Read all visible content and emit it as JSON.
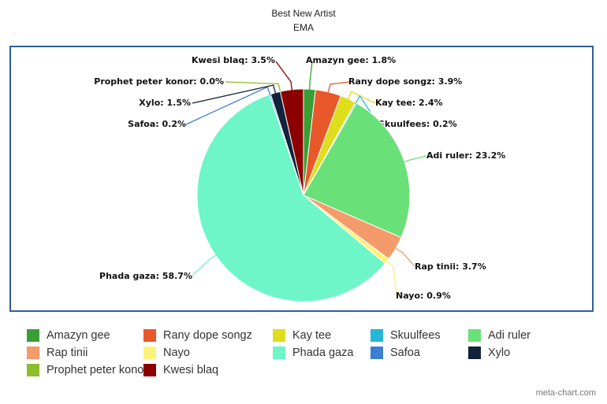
{
  "chart_data": {
    "type": "pie",
    "title": "Best New Artist",
    "subtitle": "EMA",
    "slices": [
      {
        "name": "Amazyn gee",
        "value": 1.8,
        "label": "Amazyn gee: 1.8%",
        "color": "#3a9e34"
      },
      {
        "name": "Rany dope songz",
        "value": 3.9,
        "label": "Rany dope songz: 3.9%",
        "color": "#e8582a"
      },
      {
        "name": "Kay tee",
        "value": 2.4,
        "label": "Kay tee: 2.4%",
        "color": "#dede1c"
      },
      {
        "name": "Skuulfees",
        "value": 0.2,
        "label": "Skuulfees: 0.2%",
        "color": "#26b7d8"
      },
      {
        "name": "Adi ruler",
        "value": 23.2,
        "label": "Adi ruler: 23.2%",
        "color": "#6ae078"
      },
      {
        "name": "Rap tinii",
        "value": 3.7,
        "label": "Rap tinii: 3.7%",
        "color": "#f59a6a"
      },
      {
        "name": "Nayo",
        "value": 0.9,
        "label": "Nayo: 0.9%",
        "color": "#fff27a"
      },
      {
        "name": "Phada gaza",
        "value": 58.7,
        "label": "Phada gaza: 58.7%",
        "color": "#6ef5c8"
      },
      {
        "name": "Safoa",
        "value": 0.2,
        "label": "Safoa: 0.2%",
        "color": "#3a7fd4"
      },
      {
        "name": "Xylo",
        "value": 1.5,
        "label": "Xylo: 1.5%",
        "color": "#12223a"
      },
      {
        "name": "Prophet peter konor",
        "value": 0.0,
        "label": "Prophet peter konor: 0.0%",
        "color": "#8cbd2a"
      },
      {
        "name": "Kwesi blaq",
        "value": 3.5,
        "label": "Kwesi blaq: 3.5%",
        "color": "#8b0000"
      }
    ],
    "legend_position": "bottom"
  },
  "credit": "meta-chart.com"
}
